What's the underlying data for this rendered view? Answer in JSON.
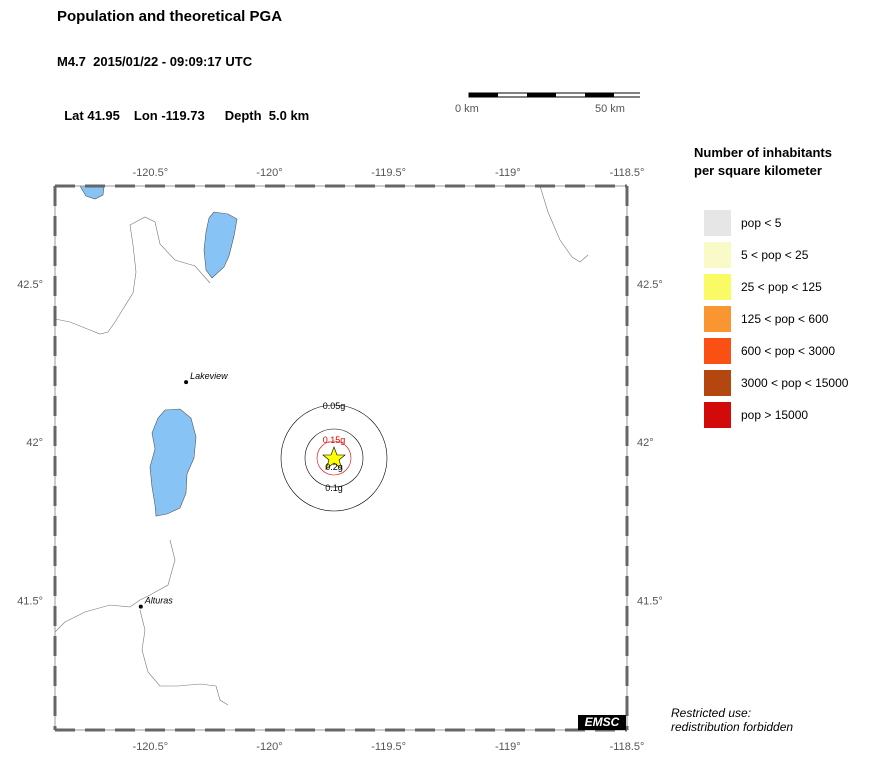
{
  "header": {
    "title": "Population and theoretical PGA",
    "subtitle": "M4.7  2015/01/22 - 09:09:17 UTC",
    "lat": "Lat 41.95",
    "lon": "Lon -119.73",
    "depth": "Depth  5.0 km"
  },
  "scale": {
    "left_label": "0 km",
    "right_label": "50 km"
  },
  "axes": {
    "x_ticks": [
      "-120.5°",
      "-120°",
      "-119.5°",
      "-119°",
      "-118.5°"
    ],
    "y_ticks": [
      "42.5°",
      "42°",
      "41.5°"
    ]
  },
  "cities": [
    {
      "name": "Lakeview",
      "lon": -120.35,
      "lat": 42.19
    },
    {
      "name": "Alturas",
      "lon": -120.54,
      "lat": 41.48
    }
  ],
  "epicenter": {
    "lon": -119.73,
    "lat": 41.95
  },
  "pga_contours": [
    {
      "label": "0.05g",
      "color": "#000000"
    },
    {
      "label": "0.15g",
      "color": "#e00000"
    },
    {
      "label": "0.2g",
      "color": "#000000"
    },
    {
      "label": "0.1g",
      "color": "#000000"
    }
  ],
  "legend": {
    "title_line1": "Number of inhabitants",
    "title_line2": "per square kilometer",
    "items": [
      {
        "label": "pop < 5",
        "color": "#e6e6e6"
      },
      {
        "label": "5 < pop < 25",
        "color": "#fafac8"
      },
      {
        "label": "25 < pop < 125",
        "color": "#fafa64"
      },
      {
        "label": "125 < pop < 600",
        "color": "#fa9632"
      },
      {
        "label": "600 < pop < 3000",
        "color": "#fa5014"
      },
      {
        "label": "3000 < pop < 15000",
        "color": "#b4460f"
      },
      {
        "label": "pop > 15000",
        "color": "#d20a0a"
      }
    ]
  },
  "logo": "EMSC",
  "footer": {
    "line1": "Restricted use:",
    "line2": "redistribution forbidden"
  },
  "colors": {
    "water": "#87c4f5",
    "epicenter_fill": "#ffff00"
  }
}
